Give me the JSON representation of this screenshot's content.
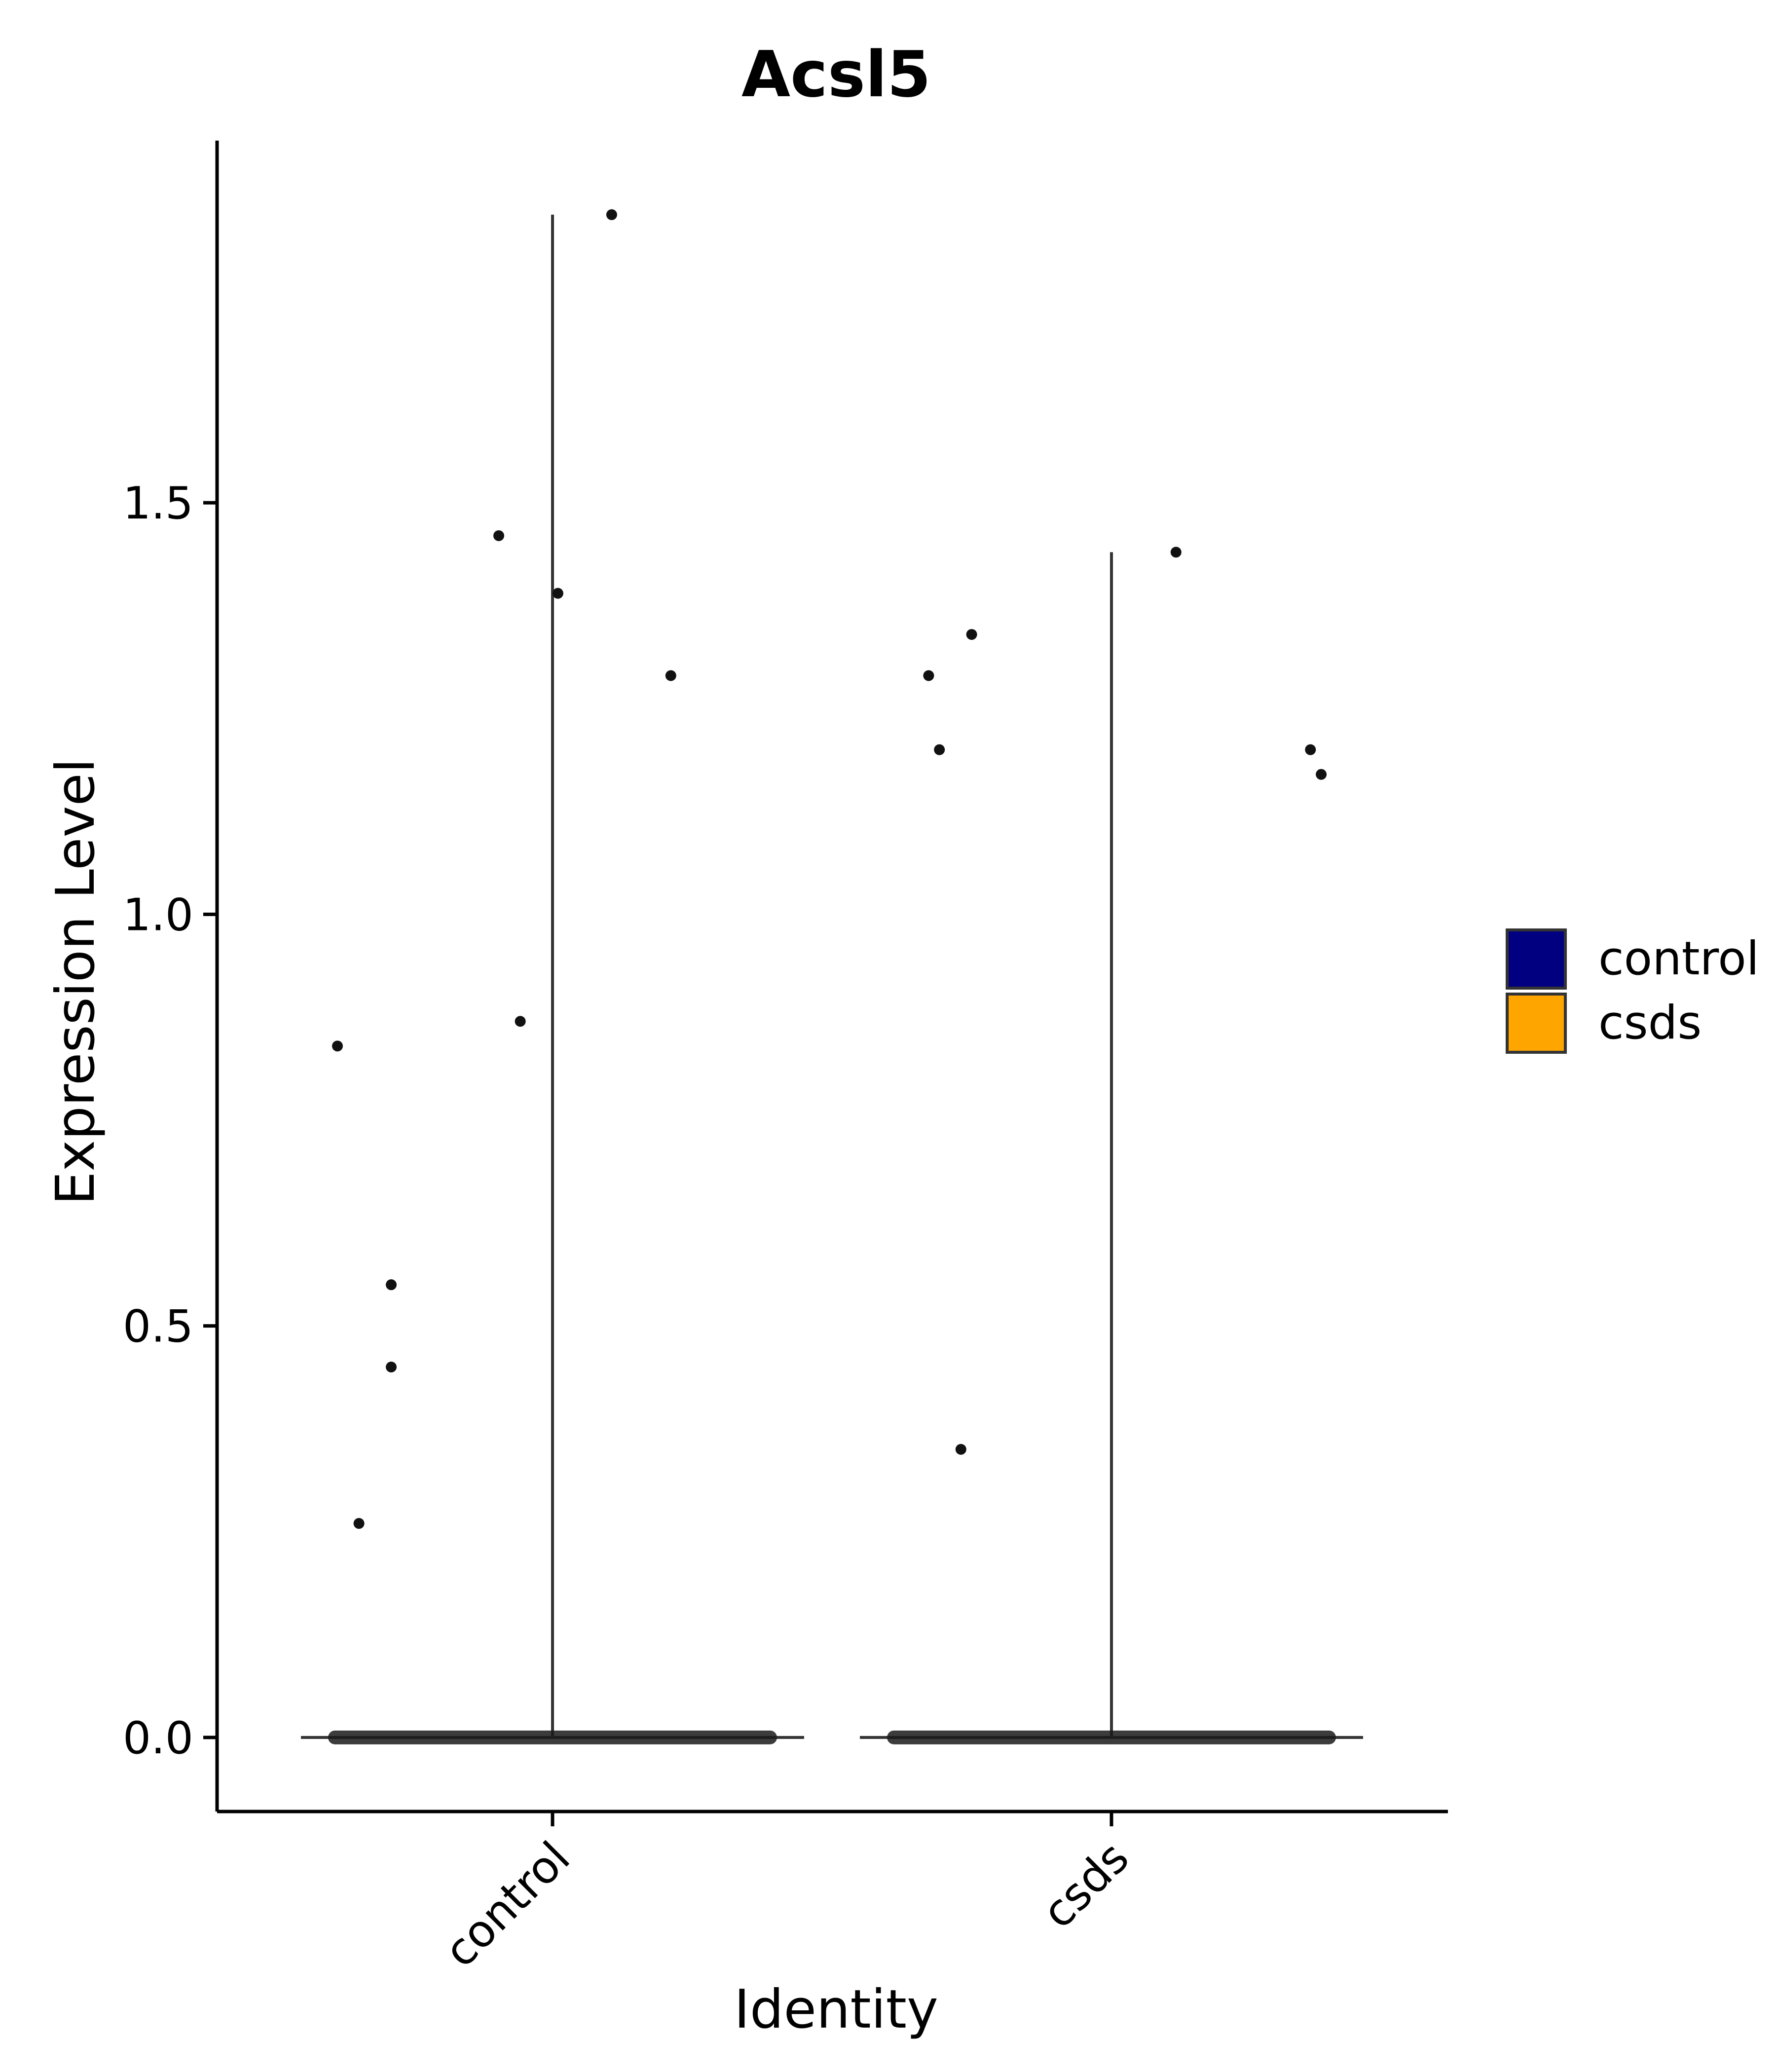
{
  "chart_data": {
    "type": "violin",
    "title": "Acsl5",
    "xlabel": "Identity",
    "ylabel": "Expression Level",
    "categories": [
      "control",
      "csds"
    ],
    "ylim": [
      -0.09,
      1.94
    ],
    "y_ticks": [
      0.0,
      0.5,
      1.0,
      1.5
    ],
    "y_tick_labels": [
      "0.0",
      "0.5",
      "1.0",
      "1.5"
    ],
    "grid": false,
    "legend": {
      "position": "right",
      "entries": [
        {
          "label": "control",
          "color": "#000080"
        },
        {
          "label": "csds",
          "color": "#FFA500"
        }
      ]
    },
    "series": [
      {
        "name": "control",
        "color": "#000080",
        "max": 1.85,
        "zero_cluster": true,
        "points": [
          {
            "x_jitter": 0.11,
            "y": 1.85
          },
          {
            "x_jitter": -0.1,
            "y": 1.46
          },
          {
            "x_jitter": 0.01,
            "y": 1.39
          },
          {
            "x_jitter": 0.22,
            "y": 1.29
          },
          {
            "x_jitter": -0.06,
            "y": 0.87
          },
          {
            "x_jitter": -0.4,
            "y": 0.84
          },
          {
            "x_jitter": -0.3,
            "y": 0.55
          },
          {
            "x_jitter": -0.3,
            "y": 0.45
          },
          {
            "x_jitter": -0.36,
            "y": 0.26
          }
        ]
      },
      {
        "name": "csds",
        "color": "#FFA500",
        "max": 1.44,
        "zero_cluster": true,
        "points": [
          {
            "x_jitter": 0.12,
            "y": 1.44
          },
          {
            "x_jitter": -0.26,
            "y": 1.34
          },
          {
            "x_jitter": -0.34,
            "y": 1.29
          },
          {
            "x_jitter": -0.32,
            "y": 1.2
          },
          {
            "x_jitter": 0.37,
            "y": 1.2
          },
          {
            "x_jitter": 0.39,
            "y": 1.17
          },
          {
            "x_jitter": -0.28,
            "y": 0.35
          }
        ]
      }
    ]
  }
}
